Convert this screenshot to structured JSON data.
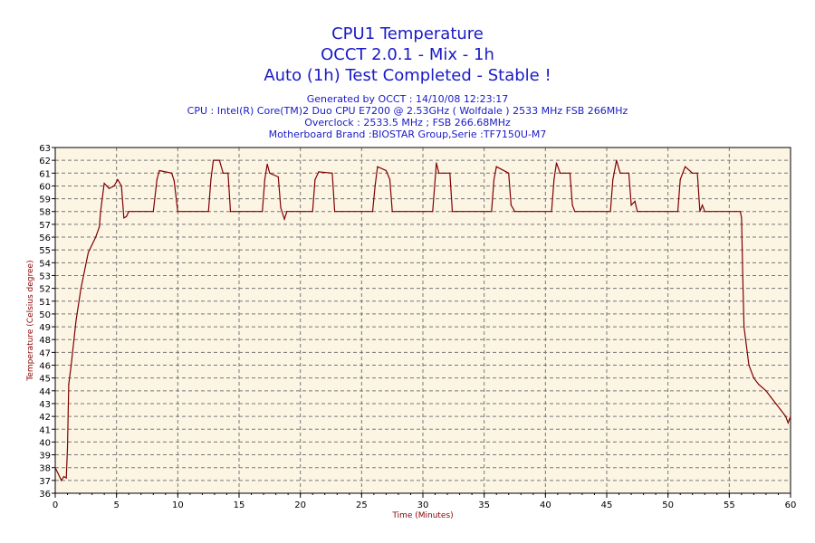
{
  "chart_data": {
    "type": "line",
    "title": [
      "CPU1 Temperature",
      "OCCT 2.0.1 - Mix - 1h",
      "Auto (1h) Test Completed - Stable !"
    ],
    "subtitle": [
      "Generated by OCCT : 14/10/08 12:23:17",
      "CPU : Intel(R) Core(TM)2 Duo CPU E7200 @ 2.53GHz ( Wolfdale ) 2533 MHz FSB 266MHz",
      "Overclock : 2533.5 MHz ; FSB 266.68MHz",
      "Motherboard Brand :BIOSTAR Group,Serie :TF7150U-M7"
    ],
    "xlabel": "Time (Minutes)",
    "ylabel": "Temperature (Celsius degree)",
    "xlim": [
      0,
      60
    ],
    "ylim": [
      36,
      63
    ],
    "xticks": [
      0,
      5,
      10,
      15,
      20,
      25,
      30,
      35,
      40,
      45,
      50,
      55,
      60
    ],
    "yticks": [
      36,
      37,
      38,
      39,
      40,
      41,
      42,
      43,
      44,
      45,
      46,
      47,
      48,
      49,
      50,
      51,
      52,
      53,
      54,
      55,
      56,
      57,
      58,
      59,
      60,
      61,
      62,
      63
    ],
    "grid": true,
    "colors": {
      "line": "#800000",
      "plot_bg": "#fdf5e4",
      "title": "#1a1ac8",
      "axis_label": "#8b0000"
    },
    "series": [
      {
        "name": "CPU1",
        "x": [
          0,
          0.5,
          0.7,
          0.9,
          1.0,
          1.1,
          1.3,
          1.7,
          2.1,
          2.7,
          3.3,
          3.6,
          3.7,
          4.0,
          4.4,
          4.8,
          5.1,
          5.4,
          5.6,
          5.8,
          6.0,
          8.0,
          8.3,
          8.5,
          9.5,
          9.7,
          10.0,
          12.5,
          12.7,
          12.9,
          13.4,
          13.7,
          14.1,
          14.3,
          16.9,
          17.1,
          17.3,
          17.5,
          18.2,
          18.4,
          18.7,
          18.9,
          21.0,
          21.2,
          21.5,
          22.6,
          22.8,
          25.9,
          26.1,
          26.3,
          27.0,
          27.3,
          27.5,
          30.8,
          31.1,
          31.3,
          32.2,
          32.4,
          35.6,
          35.8,
          36.0,
          37.0,
          37.2,
          37.5,
          40.5,
          40.7,
          40.9,
          41.2,
          42.0,
          42.2,
          42.4,
          45.3,
          45.5,
          45.8,
          46.1,
          46.8,
          47.0,
          47.3,
          47.5,
          50.8,
          51.0,
          51.4,
          52.0,
          52.4,
          52.6,
          52.8,
          53.0,
          55.9,
          56.0,
          56.1,
          56.2,
          56.6,
          57.0,
          57.4,
          58.0,
          58.4,
          58.8,
          59.2,
          59.6,
          59.8,
          60.0
        ],
        "y": [
          38,
          37,
          37.3,
          37.2,
          39.5,
          44.5,
          46,
          49.5,
          52,
          54.8,
          56,
          56.8,
          58,
          60.2,
          59.8,
          60,
          60.5,
          60,
          57.5,
          57.6,
          58,
          58,
          60.5,
          61.2,
          61,
          60.4,
          58,
          58,
          60.5,
          62,
          62,
          61,
          61,
          58,
          58,
          60.5,
          61.7,
          61,
          60.7,
          58.3,
          57.4,
          58,
          58,
          60.5,
          61.1,
          61,
          58,
          58,
          60,
          61.5,
          61.2,
          60.5,
          58,
          58,
          61.8,
          61,
          61,
          58,
          58,
          60.5,
          61.5,
          61,
          58.5,
          58,
          58,
          60.5,
          61.8,
          61,
          61,
          58.5,
          58,
          58,
          60.5,
          62,
          61,
          61,
          58.5,
          58.8,
          58,
          58,
          60.5,
          61.5,
          61,
          61,
          58,
          58.5,
          58,
          58,
          57.5,
          53,
          49,
          46,
          45,
          44.5,
          44,
          43.5,
          43,
          42.5,
          42,
          41.5,
          42
        ]
      }
    ]
  }
}
